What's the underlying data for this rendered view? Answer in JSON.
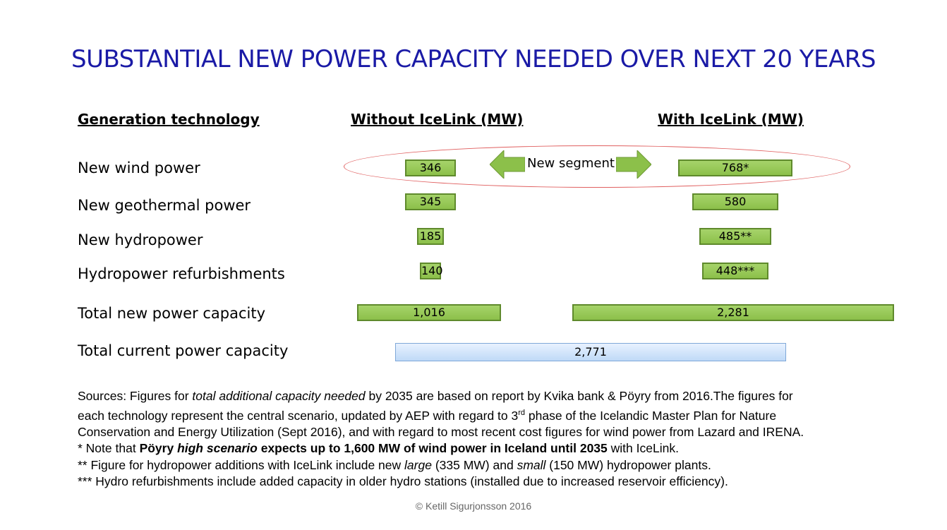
{
  "title": "SUBSTANTIAL NEW POWER CAPACITY NEEDED OVER NEXT 20 YEARS",
  "headers": {
    "technology": "Generation technology",
    "without": "Without IceLink (MW)",
    "with": "With IceLink (MW)"
  },
  "segment_label": "New segment",
  "chart_data": {
    "type": "bar",
    "categories": [
      "New wind power",
      "New geothermal power",
      "New hydropower",
      "Hydropower refurbishments",
      "Total new power capacity",
      "Total current power capacity"
    ],
    "series": [
      {
        "name": "Without IceLink (MW)",
        "values": [
          346,
          345,
          185,
          140,
          1016,
          null
        ],
        "labels": [
          "346",
          "345",
          "185",
          "140",
          "1,016",
          ""
        ]
      },
      {
        "name": "With IceLink (MW)",
        "values": [
          768,
          580,
          485,
          448,
          2281,
          null
        ],
        "labels": [
          "768*",
          "580",
          "485**",
          "448***",
          "2,281",
          ""
        ]
      }
    ],
    "current_capacity": {
      "value": 2771,
      "label": "2,771"
    },
    "colors": {
      "bar": "#8cc04a",
      "bar_border": "#5f8a2c",
      "current": "#bfd9f7",
      "ellipse": "#e06060",
      "title": "#1a1aa6"
    }
  },
  "notes": {
    "line1_a": "Sources: Figures for ",
    "line1_b": "total additional capacity needed",
    "line1_c": " by 2035 are based on report by Kvika bank & Pöyry from 2016.The figures for",
    "line2_a": "each technology represent the central scenario, updated by AEP with regard to 3",
    "line2_sup": "rd",
    "line2_b": " phase of the Icelandic Master Plan for Nature",
    "line3": "Conservation and Energy Utilization (Sept 2016), and with regard to most recent cost figures for wind power from Lazard and IRENA.",
    "line4_a": "*   Note that ",
    "line4_b": "Pöyry ",
    "line4_c": "high scenario",
    "line4_d": " expects up to 1,600 MW of wind power in Iceland until 2035",
    "line4_e": " with IceLink.",
    "line5_a": "**  Figure for hydropower additions with IceLink include new ",
    "line5_b": "large",
    "line5_c": " (335 MW) and ",
    "line5_d": "small",
    "line5_e": " (150 MW) hydropower plants.",
    "line6": "***  Hydro refurbishments include added capacity in older hydro stations (installed due to increased reservoir efficiency)."
  },
  "footer": "© Ketill Sigurjonsson 2016"
}
